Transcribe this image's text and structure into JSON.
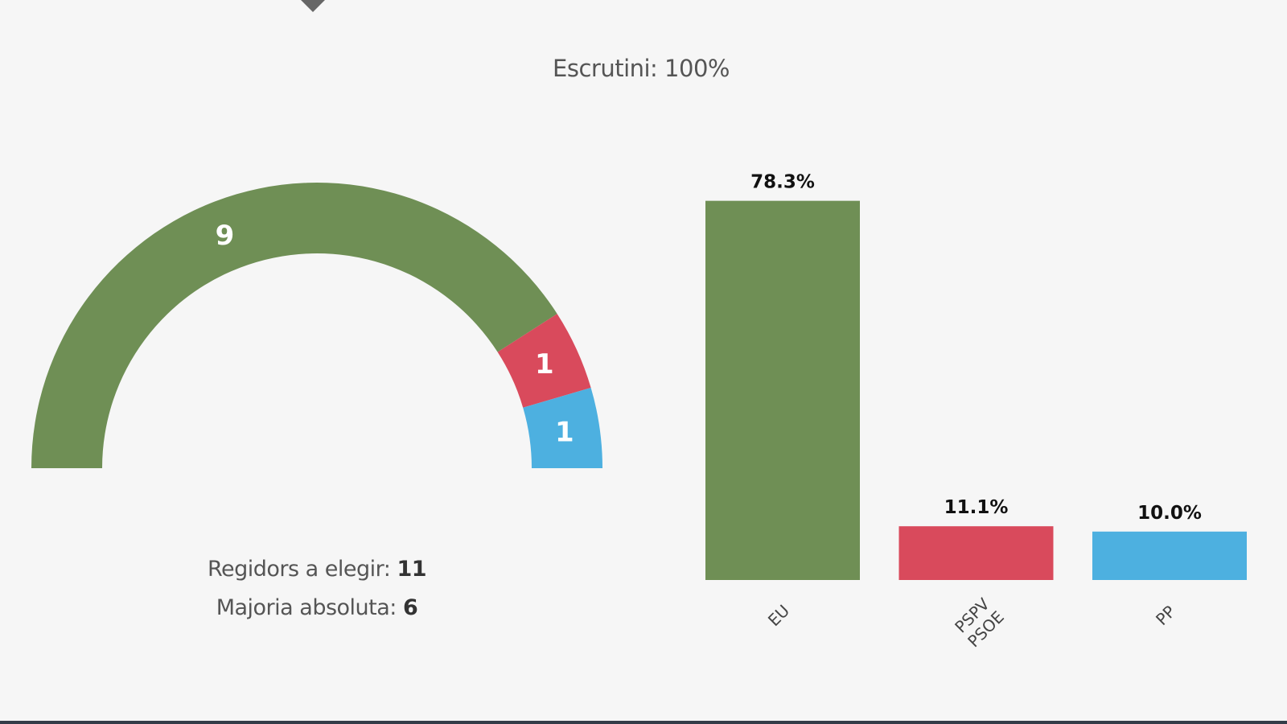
{
  "header": {
    "scrutiny_label": "Escrutini: 100%"
  },
  "seats_info": {
    "to_elect_label": "Regidors a elegir:",
    "to_elect_value": "11",
    "majority_label": "Majoria absoluta:",
    "majority_value": "6"
  },
  "chart_data": [
    {
      "type": "pie",
      "variant": "semicircle",
      "total": 11,
      "categories": [
        "EU",
        "PSPV - PSOE",
        "PP"
      ],
      "values": [
        9,
        1,
        1
      ],
      "labels": [
        "9",
        "1",
        "1"
      ],
      "colors": [
        "#6f8f55",
        "#d94a5c",
        "#4db0e0"
      ]
    },
    {
      "type": "bar",
      "categories": [
        "EU",
        "PSPV - PSOE",
        "PP"
      ],
      "values": [
        78.3,
        11.1,
        10.0
      ],
      "labels": [
        "78.3%",
        "11.1%",
        "10.0%"
      ],
      "colors": [
        "#6f8f55",
        "#d94a5c",
        "#4db0e0"
      ],
      "ylim": [
        0,
        100
      ],
      "grid": false,
      "xlabel": "",
      "ylabel": ""
    }
  ]
}
